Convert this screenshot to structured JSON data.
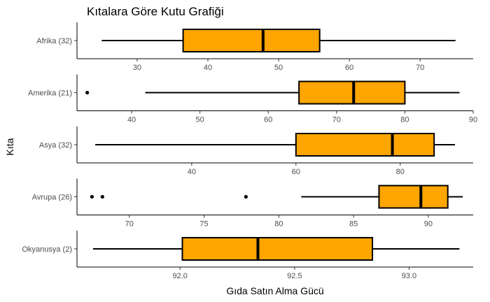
{
  "chart_data": {
    "type": "boxplot",
    "title": "Kıtalara Göre Kutu Grafiği",
    "xlabel": "Gıda Satın Alma Gücü",
    "ylabel": "Kıta",
    "box_color": "#FFA500",
    "facets": [
      {
        "label": "Afrika (32)",
        "xlim": [
          21.5,
          77.5
        ],
        "ticks": [
          30,
          40,
          50,
          60,
          70
        ],
        "whisker_low": 25,
        "q1": 36.5,
        "median": 47.8,
        "q3": 55.8,
        "whisker_high": 75,
        "outliers": []
      },
      {
        "label": "Amerika (21)",
        "xlim": [
          32,
          90
        ],
        "ticks": [
          40,
          50,
          60,
          70,
          80,
          90
        ],
        "whisker_low": 42,
        "q1": 64.5,
        "median": 72.5,
        "q3": 80,
        "whisker_high": 88,
        "outliers": [
          33.5
        ]
      },
      {
        "label": "Asya (32)",
        "xlim": [
          18,
          94
        ],
        "ticks": [
          40,
          60,
          80
        ],
        "whisker_low": 21.5,
        "q1": 60,
        "median": 78.5,
        "q3": 86.5,
        "whisker_high": 90.5,
        "outliers": []
      },
      {
        "label": "Avrupa (26)",
        "xlim": [
          66.5,
          93
        ],
        "ticks": [
          70,
          75,
          80,
          85,
          90
        ],
        "whisker_low": 81.5,
        "q1": 86.7,
        "median": 89.5,
        "q3": 91.3,
        "whisker_high": 92.3,
        "outliers": [
          67.5,
          68.2,
          77.8
        ]
      },
      {
        "label": "Okyanusya (2)",
        "xlim": [
          91.55,
          93.28
        ],
        "ticks": [
          "92.0",
          "92.5",
          "93.0"
        ],
        "whisker_low": 91.62,
        "q1": 92.01,
        "median": 92.34,
        "q3": 92.84,
        "whisker_high": 93.22,
        "outliers": []
      }
    ]
  }
}
